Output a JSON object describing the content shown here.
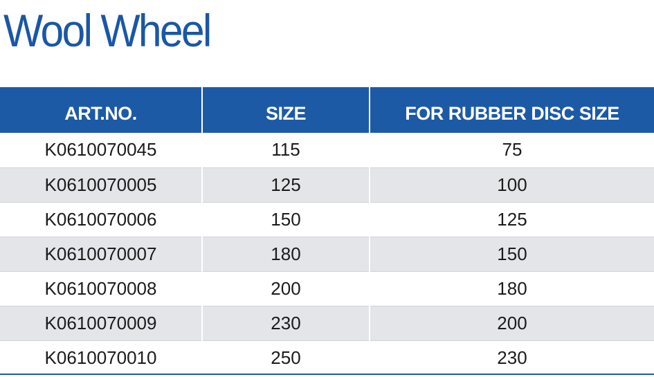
{
  "title": "Wool Wheel",
  "table": {
    "headers": [
      "ART.NO.",
      "SIZE",
      "FOR RUBBER DISC SIZE"
    ],
    "rows": [
      [
        "K0610070045",
        "115",
        "75"
      ],
      [
        "K0610070005",
        "125",
        "100"
      ],
      [
        "K0610070006",
        "150",
        "125"
      ],
      [
        "K0610070007",
        "180",
        "150"
      ],
      [
        "K0610070008",
        "200",
        "180"
      ],
      [
        "K0610070009",
        "230",
        "200"
      ],
      [
        "K0610070010",
        "250",
        "230"
      ]
    ]
  },
  "colors": {
    "brand_blue": "#1d5aa6",
    "title_blue": "#1a57a6",
    "stripe_gray": "#e3e5e9"
  }
}
